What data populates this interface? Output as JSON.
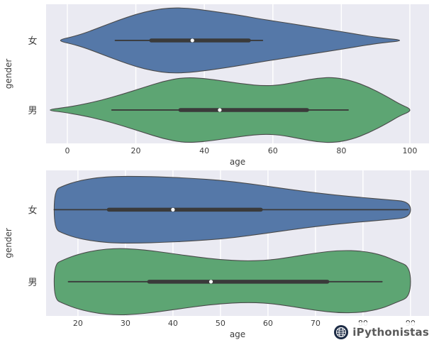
{
  "figure": {
    "bg": "#ffffff",
    "axes_bg": "#eaeaf2",
    "grid_color": "#ffffff",
    "text_color": "#3d3d3d",
    "violin_edge": "#4a4a4a",
    "box_color": "#3a3a3a",
    "median_color": "#ffffff"
  },
  "watermark": {
    "label": "iPythonistas",
    "icon": "globe-icon"
  },
  "chart_data": [
    {
      "type": "violin",
      "orient": "horizontal",
      "title": "",
      "xlabel": "age",
      "ylabel": "gender",
      "grid": true,
      "xlim": [
        -6.2,
        105.6
      ],
      "x_ticks": [
        0,
        20,
        40,
        60,
        80,
        100
      ],
      "categories": [
        "女",
        "男"
      ],
      "series": [
        {
          "name": "女",
          "fill": "#5578a8",
          "support": [
            -2,
            1,
            5,
            10,
            15,
            20,
            25,
            30,
            35,
            40,
            46,
            52,
            58,
            65,
            72,
            80,
            88,
            93,
            97
          ],
          "density": [
            0.03,
            0.1,
            0.22,
            0.42,
            0.62,
            0.8,
            0.93,
            1.0,
            0.99,
            0.93,
            0.84,
            0.74,
            0.63,
            0.52,
            0.4,
            0.27,
            0.13,
            0.06,
            0.02
          ],
          "box": {
            "whisker_low": 14,
            "q1": 24.5,
            "median": 36.5,
            "q3": 53,
            "whisker_high": 57
          }
        },
        {
          "name": "男",
          "fill": "#5da573",
          "support": [
            -5,
            -1,
            4,
            10,
            16,
            22,
            28,
            34,
            40,
            46,
            52,
            57,
            62,
            68,
            73,
            78,
            83,
            88,
            93,
            97,
            100
          ],
          "density": [
            0.02,
            0.07,
            0.16,
            0.3,
            0.48,
            0.68,
            0.88,
            1.0,
            0.97,
            0.88,
            0.79,
            0.74,
            0.76,
            0.88,
            0.98,
            1.0,
            0.9,
            0.7,
            0.43,
            0.18,
            0.05
          ],
          "box": {
            "whisker_low": 13,
            "q1": 33,
            "median": 44.5,
            "q3": 70,
            "whisker_high": 82
          }
        }
      ]
    },
    {
      "type": "violin",
      "orient": "horizontal",
      "title": "",
      "xlabel": "age",
      "ylabel": "gender",
      "grid": true,
      "xlim": [
        13.3,
        93.9
      ],
      "x_ticks": [
        20,
        30,
        40,
        50,
        60,
        70,
        80,
        90
      ],
      "categories": [
        "女",
        "男"
      ],
      "series": [
        {
          "name": "女",
          "fill": "#5578a8",
          "support": [
            15,
            17,
            20,
            24,
            28,
            33,
            38,
            44,
            50,
            56,
            62,
            68,
            74,
            80,
            85,
            90
          ],
          "density": [
            0.58,
            0.72,
            0.86,
            0.96,
            1.0,
            1.0,
            0.98,
            0.94,
            0.88,
            0.78,
            0.66,
            0.54,
            0.44,
            0.36,
            0.3,
            0.24
          ],
          "box": {
            "whisker_low": 15,
            "q1": 26.5,
            "median": 40,
            "q3": 58.5,
            "whisker_high": 89.5
          }
        },
        {
          "name": "男",
          "fill": "#5da573",
          "support": [
            15,
            17,
            20,
            24,
            28,
            32,
            36,
            40,
            45,
            50,
            55,
            60,
            65,
            70,
            75,
            80,
            84,
            87,
            90
          ],
          "density": [
            0.52,
            0.66,
            0.82,
            0.95,
            1.0,
            0.98,
            0.92,
            0.84,
            0.74,
            0.66,
            0.62,
            0.64,
            0.74,
            0.86,
            0.94,
            0.92,
            0.8,
            0.62,
            0.45
          ],
          "box": {
            "whisker_low": 18,
            "q1": 35,
            "median": 48,
            "q3": 72.5,
            "whisker_high": 84
          }
        }
      ]
    }
  ]
}
